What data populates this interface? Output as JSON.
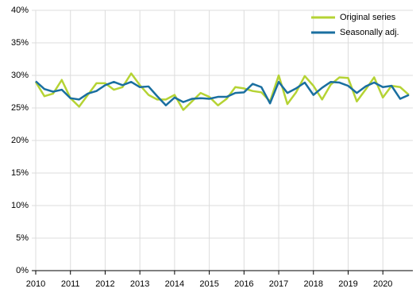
{
  "chart_data": {
    "type": "line",
    "categories": [
      "2010",
      null,
      null,
      null,
      "2011",
      null,
      null,
      null,
      "2012",
      null,
      null,
      null,
      "2013",
      null,
      null,
      null,
      "2014",
      null,
      null,
      null,
      "2015",
      null,
      null,
      null,
      "2016",
      null,
      null,
      null,
      "2017",
      null,
      null,
      null,
      "2018",
      null,
      null,
      null,
      "2019",
      null,
      null,
      null,
      "2020",
      null,
      null,
      null
    ],
    "series": [
      {
        "name": "Original series",
        "color": "#b5d334",
        "values": [
          29.0,
          26.8,
          27.2,
          29.3,
          26.5,
          25.2,
          27.0,
          28.8,
          28.8,
          27.8,
          28.2,
          30.3,
          28.5,
          27.0,
          26.3,
          26.3,
          27.0,
          24.7,
          26.0,
          27.3,
          26.7,
          25.4,
          26.4,
          28.2,
          28.0,
          27.6,
          27.4,
          26.0,
          30.0,
          25.6,
          27.4,
          29.9,
          28.4,
          26.3,
          28.6,
          29.7,
          29.6,
          26.0,
          27.8,
          29.7,
          26.6,
          28.4,
          28.2,
          27.0
        ]
      },
      {
        "name": "Seasonally adj.",
        "color": "#1a6fa0",
        "values": [
          29.1,
          27.9,
          27.5,
          27.8,
          26.5,
          26.3,
          27.2,
          27.6,
          28.5,
          29.0,
          28.5,
          29.0,
          28.2,
          28.3,
          26.8,
          25.4,
          26.6,
          25.9,
          26.4,
          26.5,
          26.4,
          26.7,
          26.7,
          27.3,
          27.4,
          28.7,
          28.2,
          25.7,
          29.0,
          27.3,
          28.0,
          28.9,
          27.0,
          28.1,
          29.0,
          28.9,
          28.4,
          27.3,
          28.3,
          28.9,
          28.2,
          28.4,
          26.4,
          27.0
        ]
      }
    ],
    "ylim": [
      0,
      40
    ],
    "yticks": [
      {
        "value": 0,
        "label": "0%"
      },
      {
        "value": 5,
        "label": "5%"
      },
      {
        "value": 10,
        "label": "10%"
      },
      {
        "value": 15,
        "label": "15%"
      },
      {
        "value": 20,
        "label": "20%"
      },
      {
        "value": 25,
        "label": "25%"
      },
      {
        "value": 30,
        "label": "30%"
      },
      {
        "value": 35,
        "label": "35%"
      },
      {
        "value": 40,
        "label": "40%"
      }
    ],
    "grid": true,
    "legend": "top-right"
  }
}
